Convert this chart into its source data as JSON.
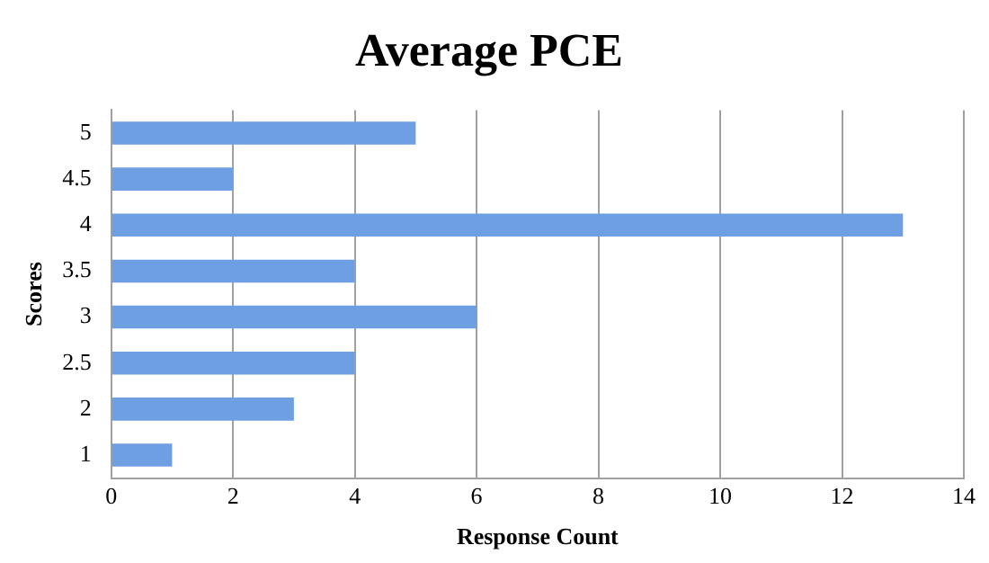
{
  "chart_data": {
    "type": "bar",
    "orientation": "horizontal",
    "title": "Average PCE",
    "xlabel": "Response Count",
    "ylabel": "Scores",
    "categories": [
      "5",
      "4.5",
      "4",
      "3.5",
      "3",
      "2.5",
      "2",
      "1"
    ],
    "values": [
      5,
      2,
      13,
      4,
      6,
      4,
      3,
      1
    ],
    "color": "#6f9fe3",
    "xlim": [
      0,
      14
    ],
    "xticks": [
      0,
      2,
      4,
      6,
      8,
      10,
      12,
      14
    ],
    "grid": "x"
  }
}
